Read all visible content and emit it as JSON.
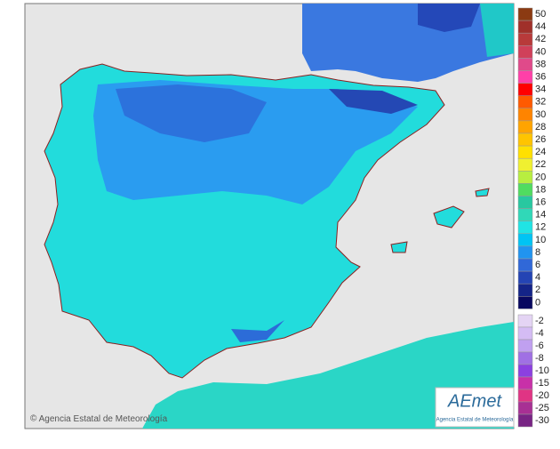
{
  "map": {
    "credit": "Agencia Estatal de Meteorología",
    "logo": {
      "name": "AEmet",
      "subtitle": "Agencia Estatal de Meteorología"
    },
    "legend": {
      "upper": [
        {
          "label": 50,
          "color": "#8b3a12"
        },
        {
          "label": 44,
          "color": "#a0302a"
        },
        {
          "label": 42,
          "color": "#b83a3a"
        },
        {
          "label": 40,
          "color": "#d0405a"
        },
        {
          "label": 38,
          "color": "#e04a8a"
        },
        {
          "label": 36,
          "color": "#ff40a8"
        },
        {
          "label": 34,
          "color": "#ff0000"
        },
        {
          "label": 32,
          "color": "#ff5a00"
        },
        {
          "label": 30,
          "color": "#ff8400"
        },
        {
          "label": 28,
          "color": "#ffa400"
        },
        {
          "label": 26,
          "color": "#ffc400"
        },
        {
          "label": 24,
          "color": "#ffe000"
        },
        {
          "label": 22,
          "color": "#f0f030"
        },
        {
          "label": 20,
          "color": "#b8ee40"
        },
        {
          "label": 18,
          "color": "#50dc60"
        },
        {
          "label": 16,
          "color": "#28c8a0"
        },
        {
          "label": 14,
          "color": "#30d8b8"
        },
        {
          "label": 12,
          "color": "#20e4e4"
        },
        {
          "label": 10,
          "color": "#00c4f4"
        },
        {
          "label": 8,
          "color": "#2094f0"
        },
        {
          "label": 6,
          "color": "#3068d8"
        },
        {
          "label": 4,
          "color": "#2444b4"
        },
        {
          "label": 2,
          "color": "#142488"
        },
        {
          "label": 0,
          "color": "#080860"
        }
      ],
      "lower": [
        {
          "label": -2,
          "color": "#e4d4f4"
        },
        {
          "label": -4,
          "color": "#d4bcf4"
        },
        {
          "label": -6,
          "color": "#c0a0f0"
        },
        {
          "label": -8,
          "color": "#a070e4"
        },
        {
          "label": -10,
          "color": "#8c40e0"
        },
        {
          "label": -15,
          "color": "#c830a8"
        },
        {
          "label": -20,
          "color": "#e03484"
        },
        {
          "label": -25,
          "color": "#a83094"
        },
        {
          "label": -30,
          "color": "#782484"
        }
      ]
    }
  }
}
